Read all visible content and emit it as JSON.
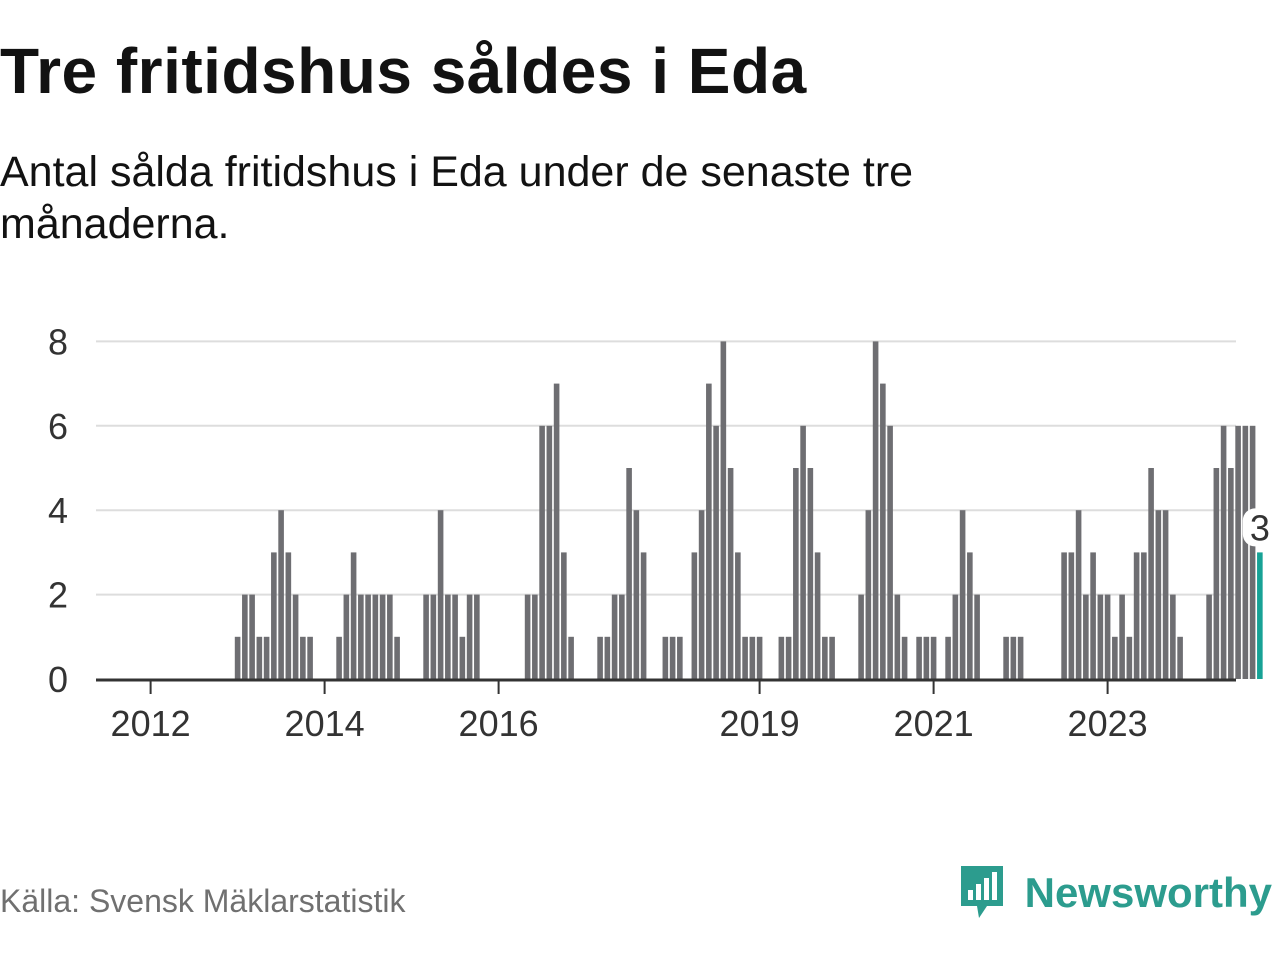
{
  "title": "Tre fritidshus såldes i Eda",
  "subtitle": "Antal sålda fritidshus i Eda under de senaste tre månaderna.",
  "source": "Källa: Svensk Mäklarstatistik",
  "brand": {
    "name": "Newsworthy",
    "icon": "newsworthy-logo-icon",
    "color": "#2c9c8e"
  },
  "colors": {
    "bar": "#6e6e72",
    "highlight": "#17a296",
    "grid": "#dddddd",
    "axis": "#333333"
  },
  "chart_data": {
    "type": "bar",
    "title": "Tre fritidshus såldes i Eda",
    "subtitle": "Antal sålda fritidshus i Eda under de senaste tre månaderna.",
    "xlabel": "",
    "ylabel": "",
    "ylim": [
      0,
      8
    ],
    "yticks": [
      0,
      2,
      4,
      6,
      8
    ],
    "grid": true,
    "legend": "none",
    "xrange": [
      "2011-11",
      "2024-02"
    ],
    "xticks": [
      "2012",
      "2014",
      "2016",
      "2019",
      "2021",
      "2023"
    ],
    "x_first": "2011-11",
    "values": [
      0,
      0,
      0,
      0,
      0,
      0,
      0,
      0,
      0,
      0,
      0,
      0,
      0,
      0,
      1,
      2,
      2,
      1,
      1,
      3,
      4,
      3,
      2,
      1,
      1,
      0,
      0,
      0,
      1,
      2,
      3,
      2,
      2,
      2,
      2,
      2,
      1,
      0,
      0,
      0,
      2,
      2,
      4,
      2,
      2,
      1,
      2,
      2,
      0,
      0,
      0,
      0,
      0,
      0,
      2,
      2,
      6,
      6,
      7,
      3,
      1,
      0,
      0,
      0,
      1,
      1,
      2,
      2,
      5,
      4,
      3,
      0,
      0,
      1,
      1,
      1,
      0,
      3,
      4,
      7,
      6,
      8,
      5,
      3,
      1,
      1,
      1,
      0,
      0,
      1,
      1,
      5,
      6,
      5,
      3,
      1,
      1,
      0,
      0,
      0,
      2,
      4,
      8,
      7,
      6,
      2,
      1,
      0,
      1,
      1,
      1,
      0,
      1,
      2,
      4,
      3,
      2,
      0,
      0,
      0,
      1,
      1,
      1,
      0,
      0,
      0,
      0,
      0,
      3,
      3,
      4,
      2,
      3,
      2,
      2,
      1,
      2,
      1,
      3,
      3,
      5,
      4,
      4,
      2,
      1,
      0,
      0,
      0,
      2,
      5,
      6,
      5,
      6,
      6,
      6,
      3
    ],
    "highlight": {
      "label": "3",
      "value": 3
    }
  }
}
